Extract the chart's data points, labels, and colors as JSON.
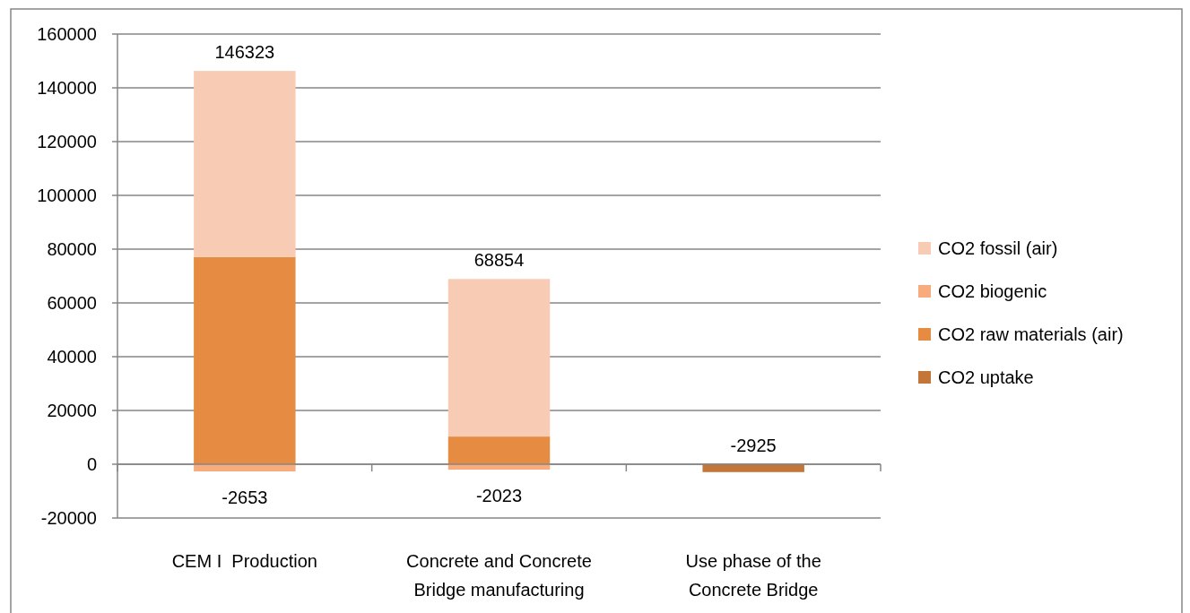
{
  "chart_data": {
    "type": "bar",
    "stacked": true,
    "categories": [
      "CEM I  Production",
      "Concrete and Concrete Bridge manufacturing",
      "Use phase of the Concrete Bridge"
    ],
    "series": [
      {
        "name": "CO2 uptake",
        "color": "#c37638",
        "values": [
          null,
          null,
          -2925
        ]
      },
      {
        "name": "CO2 raw materials (air)",
        "color": "#e68c42",
        "values": [
          77100,
          10300,
          null
        ]
      },
      {
        "name": "CO2 biogenic",
        "color": "#f8ab7c",
        "values": [
          -2653,
          -2023,
          null
        ],
        "value_labels": [
          "-2653",
          "-2023",
          null
        ]
      },
      {
        "name": "CO2 fossil (air)",
        "color": "#f8cbb4",
        "values": [
          69200,
          58600,
          null
        ]
      }
    ],
    "annotations": [
      {
        "text": "146323",
        "x": "CEM I  Production",
        "y": 146323
      },
      {
        "text": "68854",
        "x": "Concrete and Concrete Bridge manufacturing",
        "y": 68854
      },
      {
        "text": "-2925",
        "x": "Use phase of the Concrete Bridge",
        "y": -2925
      }
    ],
    "ylim": [
      -20000,
      160000
    ],
    "yticks": [
      -20000,
      0,
      20000,
      40000,
      60000,
      80000,
      100000,
      120000,
      140000,
      160000
    ],
    "grid": "y",
    "legend": "right"
  }
}
